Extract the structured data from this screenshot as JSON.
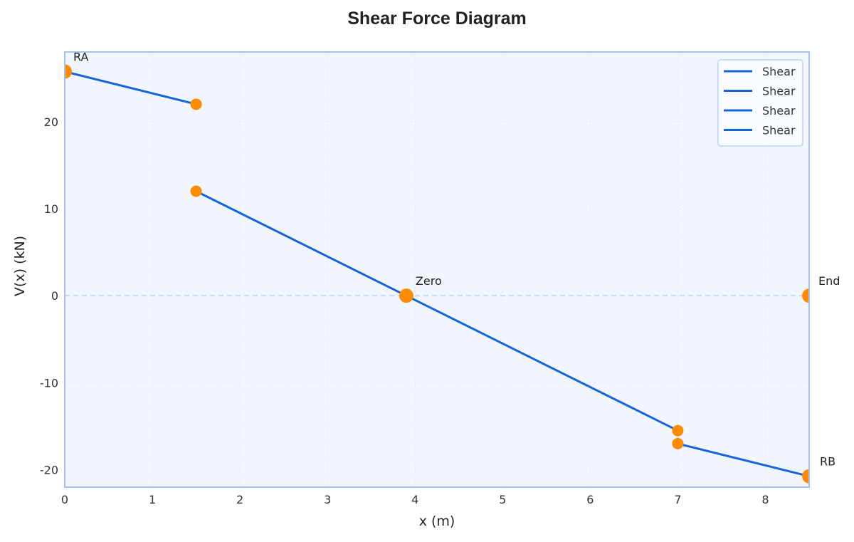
{
  "chart_data": {
    "type": "line",
    "title": "Shear Force Diagram",
    "xlabel": "x (m)",
    "ylabel": "V(x) (kN)",
    "xlim": [
      0,
      8.5
    ],
    "ylim": [
      -22,
      28
    ],
    "xticks": [
      0,
      1,
      2,
      3,
      4,
      5,
      6,
      7,
      8
    ],
    "yticks": [
      -20,
      -10,
      0,
      10,
      20
    ],
    "grid": true,
    "legend_position": "upper right",
    "legend": [
      "Shear",
      "Shear",
      "Shear",
      "Shear"
    ],
    "series": [
      {
        "name": "Shear",
        "x": [
          0,
          1.5
        ],
        "y": [
          25.75,
          22
        ]
      },
      {
        "name": "Shear",
        "x": [
          1.5,
          3.9,
          7
        ],
        "y": [
          12,
          0,
          -15.5
        ]
      },
      {
        "name": "Shear",
        "x": [
          7,
          8.5
        ],
        "y": [
          -17,
          -20.75
        ]
      },
      {
        "name": "Shear",
        "x": [
          8.5
        ],
        "y": [
          0
        ]
      }
    ],
    "markers": [
      {
        "x": 0,
        "y": 25.75,
        "size": "large",
        "label": "RA"
      },
      {
        "x": 1.5,
        "y": 22,
        "size": "small",
        "label": ""
      },
      {
        "x": 1.5,
        "y": 12,
        "size": "small",
        "label": ""
      },
      {
        "x": 3.9,
        "y": 0,
        "size": "large",
        "label": "Zero"
      },
      {
        "x": 7,
        "y": -15.5,
        "size": "small",
        "label": ""
      },
      {
        "x": 7,
        "y": -17,
        "size": "small",
        "label": ""
      },
      {
        "x": 8.5,
        "y": -20.75,
        "size": "large",
        "label": "RB"
      },
      {
        "x": 8.5,
        "y": 0,
        "size": "large",
        "label": "End"
      }
    ],
    "reference_line": {
      "y": 0,
      "style": "dashed"
    },
    "colors": {
      "line": "#1565d8",
      "marker": "#ff8c00",
      "plot_bg": "#f1f6fd",
      "frame": "#a4c3f4",
      "zero_line": "#c3d7f7"
    }
  }
}
